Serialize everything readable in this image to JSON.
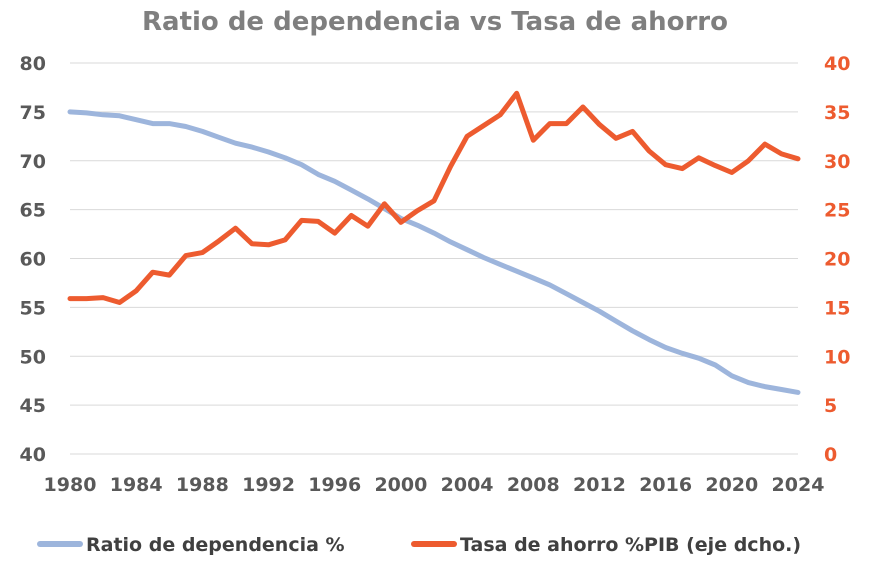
{
  "chart_data": {
    "type": "line",
    "title": "Ratio de dependencia vs Tasa de ahorro",
    "x": [
      1980,
      1981,
      1982,
      1983,
      1984,
      1985,
      1986,
      1987,
      1988,
      1989,
      1990,
      1991,
      1992,
      1993,
      1994,
      1995,
      1996,
      1997,
      1998,
      1999,
      2000,
      2001,
      2002,
      2003,
      2004,
      2005,
      2006,
      2007,
      2008,
      2009,
      2010,
      2011,
      2012,
      2013,
      2014,
      2015,
      2016,
      2017,
      2018,
      2019,
      2020,
      2021,
      2022,
      2023,
      2024
    ],
    "xticks": [
      1980,
      1984,
      1988,
      1992,
      1996,
      2000,
      2004,
      2008,
      2012,
      2016,
      2020,
      2024
    ],
    "y_left": {
      "ylim": [
        40,
        80
      ],
      "ticks": [
        40,
        45,
        50,
        55,
        60,
        65,
        70,
        75,
        80
      ]
    },
    "y_right": {
      "ylim": [
        0,
        40
      ],
      "ticks": [
        0,
        5,
        10,
        15,
        20,
        25,
        30,
        35,
        40
      ]
    },
    "series": [
      {
        "name": "Ratio de dependencia %",
        "axis": "left",
        "color": "#9db5dc",
        "values": [
          75.0,
          74.9,
          74.7,
          74.6,
          74.2,
          73.8,
          73.8,
          73.5,
          73.0,
          72.4,
          71.8,
          71.4,
          70.9,
          70.3,
          69.6,
          68.6,
          67.9,
          67.0,
          66.1,
          65.1,
          64.1,
          63.4,
          62.6,
          61.7,
          60.9,
          60.1,
          59.4,
          58.7,
          58.0,
          57.3,
          56.4,
          55.5,
          54.6,
          53.6,
          52.6,
          51.7,
          50.9,
          50.3,
          49.8,
          49.1,
          48.0,
          47.3,
          46.9,
          46.6,
          46.3
        ]
      },
      {
        "name": "Tasa de ahorro %PIB (eje dcho.)",
        "axis": "right",
        "color": "#ed5b2f",
        "values": [
          15.9,
          15.9,
          16.0,
          15.5,
          16.7,
          18.6,
          18.3,
          20.3,
          20.6,
          21.8,
          23.1,
          21.5,
          21.4,
          21.9,
          23.9,
          23.8,
          22.6,
          24.4,
          23.3,
          25.6,
          23.7,
          24.9,
          25.9,
          29.4,
          32.5,
          33.6,
          34.7,
          36.9,
          32.1,
          33.8,
          33.8,
          35.5,
          33.7,
          32.3,
          33.0,
          31.0,
          29.6,
          29.2,
          30.3,
          29.5,
          28.8,
          30.0,
          31.7,
          30.7,
          30.2
        ]
      }
    ],
    "legend": "bottom"
  }
}
